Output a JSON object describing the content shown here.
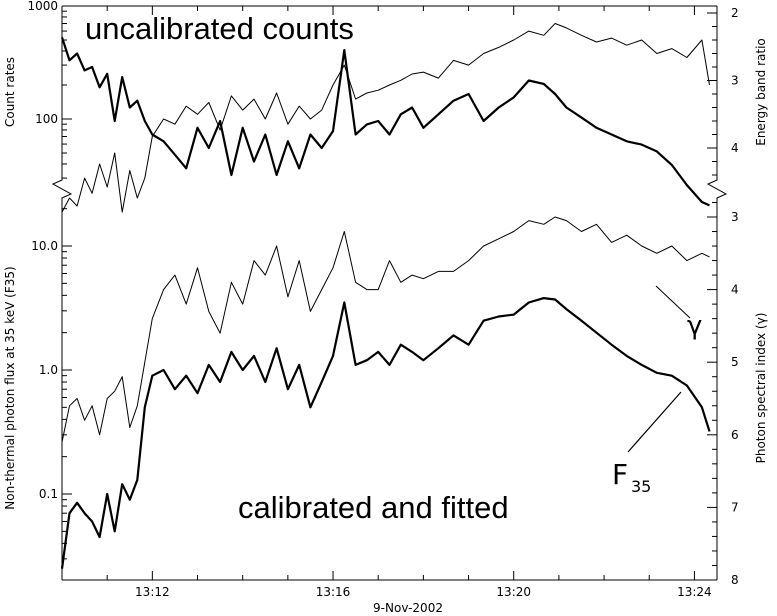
{
  "chart_data": [
    {
      "type": "line",
      "panel": "top",
      "title": "uncalibrated counts",
      "x_range": [
        "13:10",
        "13:24:30"
      ],
      "xticks": [
        "13:12",
        "13:16",
        "13:20",
        "13:24"
      ],
      "y_left": {
        "label": "Count rates",
        "scale": "log",
        "ticks": [
          100,
          1000
        ],
        "tick_labels": [
          "100",
          "1000"
        ]
      },
      "y_right": {
        "label": "Energy band ratio",
        "scale": "inverted",
        "ticks": [
          2,
          3,
          4
        ],
        "tick_labels": [
          "2",
          "3",
          "4"
        ]
      },
      "series": [
        {
          "style": "thick",
          "x": [
            "13:10:00",
            "13:10:10",
            "13:10:20",
            "13:10:30",
            "13:10:40",
            "13:10:50",
            "13:11:00",
            "13:11:10",
            "13:11:20",
            "13:11:30",
            "13:11:40",
            "13:11:50",
            "13:12:00",
            "13:12:15",
            "13:12:30",
            "13:12:45",
            "13:13:00",
            "13:13:15",
            "13:13:30",
            "13:13:45",
            "13:14:00",
            "13:14:15",
            "13:14:30",
            "13:14:45",
            "13:15:00",
            "13:15:15",
            "13:15:30",
            "13:15:45",
            "13:16:00",
            "13:16:15",
            "13:16:30",
            "13:16:45",
            "13:17:00",
            "13:17:15",
            "13:17:30",
            "13:17:45",
            "13:18:00",
            "13:18:20",
            "13:18:40",
            "13:19:00",
            "13:19:20",
            "13:19:40",
            "13:20:00",
            "13:20:20",
            "13:20:40",
            "13:20:55",
            "13:21:10",
            "13:21:30",
            "13:21:50",
            "13:22:10",
            "13:22:30",
            "13:22:50",
            "13:23:10",
            "13:23:30",
            "13:23:50",
            "13:24:10",
            "13:24:20"
          ],
          "y": [
            2.36,
            2.7,
            2.6,
            2.85,
            2.8,
            3.1,
            2.9,
            3.6,
            2.95,
            3.4,
            3.3,
            3.6,
            3.8,
            3.9,
            4.1,
            4.3,
            3.7,
            4.0,
            3.6,
            4.4,
            3.7,
            4.2,
            3.8,
            4.4,
            3.9,
            4.3,
            3.8,
            4.0,
            3.75,
            2.55,
            3.8,
            3.65,
            3.6,
            3.8,
            3.5,
            3.4,
            3.7,
            3.5,
            3.3,
            3.2,
            3.6,
            3.4,
            3.25,
            3.0,
            3.05,
            3.2,
            3.4,
            3.55,
            3.7,
            3.8,
            3.9,
            3.95,
            4.05,
            4.25,
            4.55,
            4.8,
            4.85
          ]
        },
        {
          "style": "thin",
          "x": [
            "13:10:00",
            "13:10:10",
            "13:10:20",
            "13:10:30",
            "13:10:40",
            "13:10:50",
            "13:11:00",
            "13:11:10",
            "13:11:20",
            "13:11:30",
            "13:11:40",
            "13:11:50",
            "13:12:00",
            "13:12:15",
            "13:12:30",
            "13:12:45",
            "13:13:00",
            "13:13:15",
            "13:13:30",
            "13:13:45",
            "13:14:00",
            "13:14:15",
            "13:14:30",
            "13:14:45",
            "13:15:00",
            "13:15:15",
            "13:15:30",
            "13:15:45",
            "13:16:00",
            "13:16:15",
            "13:16:30",
            "13:16:45",
            "13:17:00",
            "13:17:15",
            "13:17:30",
            "13:17:45",
            "13:18:00",
            "13:18:20",
            "13:18:40",
            "13:19:00",
            "13:19:20",
            "13:19:40",
            "13:20:00",
            "13:20:20",
            "13:20:40",
            "13:20:55",
            "13:21:10",
            "13:21:30",
            "13:21:50",
            "13:22:10",
            "13:22:30",
            "13:22:50",
            "13:23:10",
            "13:23:30",
            "13:23:50",
            "13:24:10",
            "13:24:20"
          ],
          "y": [
            15,
            20,
            17,
            30,
            22,
            40,
            25,
            50,
            15,
            35,
            20,
            30,
            70,
            100,
            90,
            130,
            110,
            140,
            80,
            160,
            120,
            150,
            100,
            170,
            90,
            130,
            100,
            120,
            200,
            300,
            150,
            170,
            180,
            200,
            220,
            250,
            260,
            230,
            330,
            300,
            380,
            430,
            500,
            600,
            550,
            700,
            640,
            550,
            480,
            520,
            450,
            500,
            380,
            420,
            350,
            500,
            200
          ]
        }
      ]
    },
    {
      "type": "line",
      "panel": "bottom",
      "title": "calibrated and fitted",
      "x_range": [
        "13:10",
        "13:24:30"
      ],
      "x_label": "9-Nov-2002",
      "xticks": [
        "13:12",
        "13:16",
        "13:20",
        "13:24"
      ],
      "y_left": {
        "label": "Non-thermal photon flux at 35 keV (F35)",
        "scale": "log",
        "ticks": [
          0.1,
          1.0,
          10.0
        ],
        "tick_labels": [
          "0.1",
          "1.0",
          "10.0"
        ]
      },
      "y_right": {
        "label": "Photon spectral index (γ)",
        "scale": "inverted",
        "ticks": [
          3,
          4,
          5,
          6,
          7,
          8
        ],
        "tick_labels": [
          "3",
          "4",
          "5",
          "6",
          "7",
          "8"
        ]
      },
      "series": [
        {
          "name": "F35",
          "style": "thick",
          "x": [
            "13:10:00",
            "13:10:10",
            "13:10:20",
            "13:10:30",
            "13:10:40",
            "13:10:50",
            "13:11:00",
            "13:11:10",
            "13:11:20",
            "13:11:30",
            "13:11:40",
            "13:11:50",
            "13:12:00",
            "13:12:15",
            "13:12:30",
            "13:12:45",
            "13:13:00",
            "13:13:15",
            "13:13:30",
            "13:13:45",
            "13:14:00",
            "13:14:15",
            "13:14:30",
            "13:14:45",
            "13:15:00",
            "13:15:15",
            "13:15:30",
            "13:15:45",
            "13:16:00",
            "13:16:15",
            "13:16:30",
            "13:16:45",
            "13:17:00",
            "13:17:15",
            "13:17:30",
            "13:17:45",
            "13:18:00",
            "13:18:20",
            "13:18:40",
            "13:19:00",
            "13:19:20",
            "13:19:40",
            "13:20:00",
            "13:20:20",
            "13:20:40",
            "13:20:55",
            "13:21:10",
            "13:21:30",
            "13:21:50",
            "13:22:10",
            "13:22:30",
            "13:22:50",
            "13:23:10",
            "13:23:30",
            "13:23:50",
            "13:24:10",
            "13:24:20"
          ],
          "y": [
            0.025,
            0.07,
            0.085,
            0.07,
            0.06,
            0.045,
            0.1,
            0.05,
            0.12,
            0.09,
            0.13,
            0.5,
            0.9,
            1.0,
            0.7,
            0.9,
            0.65,
            1.1,
            0.8,
            1.4,
            1.0,
            1.3,
            0.8,
            1.5,
            0.7,
            1.1,
            0.5,
            0.8,
            1.3,
            3.5,
            1.1,
            1.2,
            1.4,
            1.1,
            1.6,
            1.4,
            1.2,
            1.5,
            1.9,
            1.6,
            2.5,
            2.7,
            2.8,
            3.5,
            3.8,
            3.7,
            3.1,
            2.5,
            2.0,
            1.6,
            1.3,
            1.1,
            0.95,
            0.9,
            0.75,
            0.5,
            0.32
          ]
        },
        {
          "name": "γ",
          "style": "thin",
          "x": [
            "13:10:00",
            "13:10:10",
            "13:10:20",
            "13:10:30",
            "13:10:40",
            "13:10:50",
            "13:11:00",
            "13:11:10",
            "13:11:20",
            "13:11:30",
            "13:11:40",
            "13:11:50",
            "13:12:00",
            "13:12:15",
            "13:12:30",
            "13:12:45",
            "13:13:00",
            "13:13:15",
            "13:13:30",
            "13:13:45",
            "13:14:00",
            "13:14:15",
            "13:14:30",
            "13:14:45",
            "13:15:00",
            "13:15:15",
            "13:15:30",
            "13:15:45",
            "13:16:00",
            "13:16:15",
            "13:16:30",
            "13:16:45",
            "13:17:00",
            "13:17:15",
            "13:17:30",
            "13:17:45",
            "13:18:00",
            "13:18:20",
            "13:18:40",
            "13:19:00",
            "13:19:20",
            "13:19:40",
            "13:20:00",
            "13:20:20",
            "13:20:40",
            "13:20:55",
            "13:21:10",
            "13:21:30",
            "13:21:50",
            "13:22:10",
            "13:22:30",
            "13:22:50",
            "13:23:10",
            "13:23:30",
            "13:23:50",
            "13:24:10",
            "13:24:20"
          ],
          "y": [
            6.1,
            5.6,
            5.5,
            5.8,
            5.6,
            6.0,
            5.5,
            5.4,
            5.2,
            5.9,
            5.6,
            5.0,
            4.4,
            4.0,
            3.8,
            4.2,
            3.7,
            4.3,
            4.6,
            3.9,
            4.2,
            3.6,
            3.8,
            3.4,
            4.1,
            3.6,
            4.3,
            4.0,
            3.7,
            3.2,
            3.9,
            4.0,
            4.0,
            3.6,
            3.9,
            3.8,
            3.85,
            3.75,
            3.75,
            3.6,
            3.4,
            3.3,
            3.2,
            3.05,
            3.1,
            3.0,
            3.05,
            3.2,
            3.1,
            3.35,
            3.25,
            3.4,
            3.5,
            3.4,
            3.6,
            3.5,
            3.55
          ]
        }
      ],
      "annotations": {
        "gamma_label": "γ",
        "f35_label": "F",
        "f35_subscript": "35"
      }
    }
  ]
}
